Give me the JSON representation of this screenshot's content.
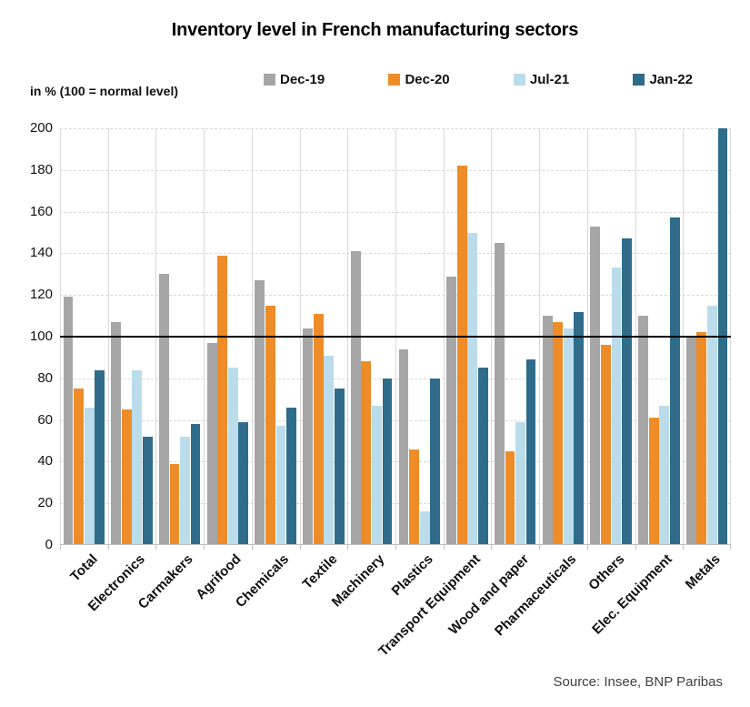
{
  "header": {
    "title": "Inventory level in French manufacturing sectors",
    "unit_note": "in % (100 = normal level)"
  },
  "source": "Source: Insee, BNP Paribas",
  "colors": {
    "grid": "#d9d9d9",
    "axis": "#bfbfbf",
    "reference_line": "#000000",
    "text": "#111111"
  },
  "chart_data": {
    "type": "bar",
    "title": "Inventory level in French manufacturing sectors",
    "ylabel": "in % (100 = normal level)",
    "ylim": [
      0,
      200
    ],
    "ytick_step": 20,
    "grid": true,
    "legend_position": "top",
    "reference_line": 100,
    "categories": [
      "Total",
      "Electronics",
      "Carmakers",
      "Agrifood",
      "Chemicals",
      "Textile",
      "Machinery",
      "Plastics",
      "Transport Equipment",
      "Wood and paper",
      "Pharmaceuticals",
      "Others",
      "Elec. Equipment",
      "Metals"
    ],
    "series": [
      {
        "name": "Dec-19",
        "color": "#A6A6A6",
        "values": [
          119,
          107,
          130,
          97,
          127,
          104,
          141,
          94,
          129,
          145,
          110,
          153,
          110,
          100
        ]
      },
      {
        "name": "Dec-20",
        "color": "#ED8C28",
        "values": [
          75,
          65,
          39,
          139,
          115,
          111,
          88,
          46,
          182,
          45,
          107,
          96,
          61,
          102
        ]
      },
      {
        "name": "Jul-21",
        "color": "#BBDCEB",
        "values": [
          66,
          84,
          52,
          85,
          57,
          91,
          67,
          16,
          150,
          59,
          104,
          133,
          67,
          115
        ]
      },
      {
        "name": "Jan-22",
        "color": "#2E6C8A",
        "values": [
          84,
          52,
          58,
          59,
          66,
          75,
          80,
          80,
          85,
          89,
          112,
          147,
          157,
          200
        ]
      }
    ]
  }
}
